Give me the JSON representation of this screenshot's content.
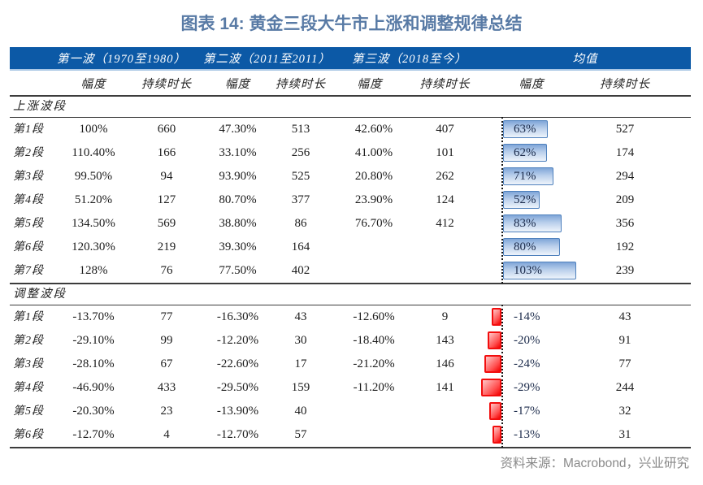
{
  "title": "图表 14: 黄金三段大牛市上涨和调整规律总结",
  "source_note": "资料来源：Macrobond，兴业研究",
  "colors": {
    "header_bg": "#0c59a6",
    "title_text": "#587aa5",
    "positive_bar_border": "#4f81bd",
    "positive_bar_fill": "#7fa5d8",
    "negative_bar_border": "#f20d0d",
    "negative_bar_fill": "#ff5050",
    "rule_lines": "#3c3c3c",
    "source_text": "#8a8a8a"
  },
  "chart_data": {
    "type": "table",
    "title": "图表 14: 黄金三段大牛市上涨和调整规律总结",
    "column_groups": [
      "第一波（1970至1980）",
      "第二波（2011至2011）",
      "第三波（2018至今）",
      "均值"
    ],
    "sub_columns": [
      "幅度",
      "持续时长",
      "幅度",
      "持续时长",
      "幅度",
      "持续时长",
      "幅度",
      "持续时长"
    ],
    "bar_column_note": "均值幅度列为数据条：正值蓝色条向右，负值红色条向左，虚线为零基线",
    "sections": [
      {
        "name": "上涨波段",
        "rows": [
          {
            "seg": "第1段",
            "cells": [
              "100%",
              "660",
              "47.30%",
              "513",
              "42.60%",
              "407",
              "63%",
              "527"
            ],
            "mean": 63
          },
          {
            "seg": "第2段",
            "cells": [
              "110.40%",
              "166",
              "33.10%",
              "256",
              "41.00%",
              "101",
              "62%",
              "174"
            ],
            "mean": 62
          },
          {
            "seg": "第3段",
            "cells": [
              "99.50%",
              "94",
              "93.90%",
              "525",
              "20.80%",
              "262",
              "71%",
              "294"
            ],
            "mean": 71
          },
          {
            "seg": "第4段",
            "cells": [
              "51.20%",
              "127",
              "80.70%",
              "377",
              "23.90%",
              "124",
              "52%",
              "209"
            ],
            "mean": 52
          },
          {
            "seg": "第5段",
            "cells": [
              "134.50%",
              "569",
              "38.80%",
              "86",
              "76.70%",
              "412",
              "83%",
              "356"
            ],
            "mean": 83
          },
          {
            "seg": "第6段",
            "cells": [
              "120.30%",
              "219",
              "39.30%",
              "164",
              "",
              "",
              "80%",
              "192"
            ],
            "mean": 80
          },
          {
            "seg": "第7段",
            "cells": [
              "128%",
              "76",
              "77.50%",
              "402",
              "",
              "",
              "103%",
              "239"
            ],
            "mean": 103
          }
        ]
      },
      {
        "name": "调整波段",
        "rows": [
          {
            "seg": "第1段",
            "cells": [
              "-13.70%",
              "77",
              "-16.30%",
              "43",
              "-12.60%",
              "9",
              "-14%",
              "43"
            ],
            "mean": -14
          },
          {
            "seg": "第2段",
            "cells": [
              "-29.10%",
              "99",
              "-12.20%",
              "30",
              "-18.40%",
              "143",
              "-20%",
              "91"
            ],
            "mean": -20
          },
          {
            "seg": "第3段",
            "cells": [
              "-28.10%",
              "67",
              "-22.60%",
              "17",
              "-21.20%",
              "146",
              "-24%",
              "77"
            ],
            "mean": -24
          },
          {
            "seg": "第4段",
            "cells": [
              "-46.90%",
              "433",
              "-29.50%",
              "159",
              "-11.20%",
              "141",
              "-29%",
              "244"
            ],
            "mean": -29
          },
          {
            "seg": "第5段",
            "cells": [
              "-20.30%",
              "23",
              "-13.90%",
              "40",
              "",
              "",
              "-17%",
              "32"
            ],
            "mean": -17
          },
          {
            "seg": "第6段",
            "cells": [
              "-12.70%",
              "4",
              "-12.70%",
              "57",
              "",
              "",
              "-13%",
              "31"
            ],
            "mean": -13
          }
        ]
      }
    ]
  }
}
